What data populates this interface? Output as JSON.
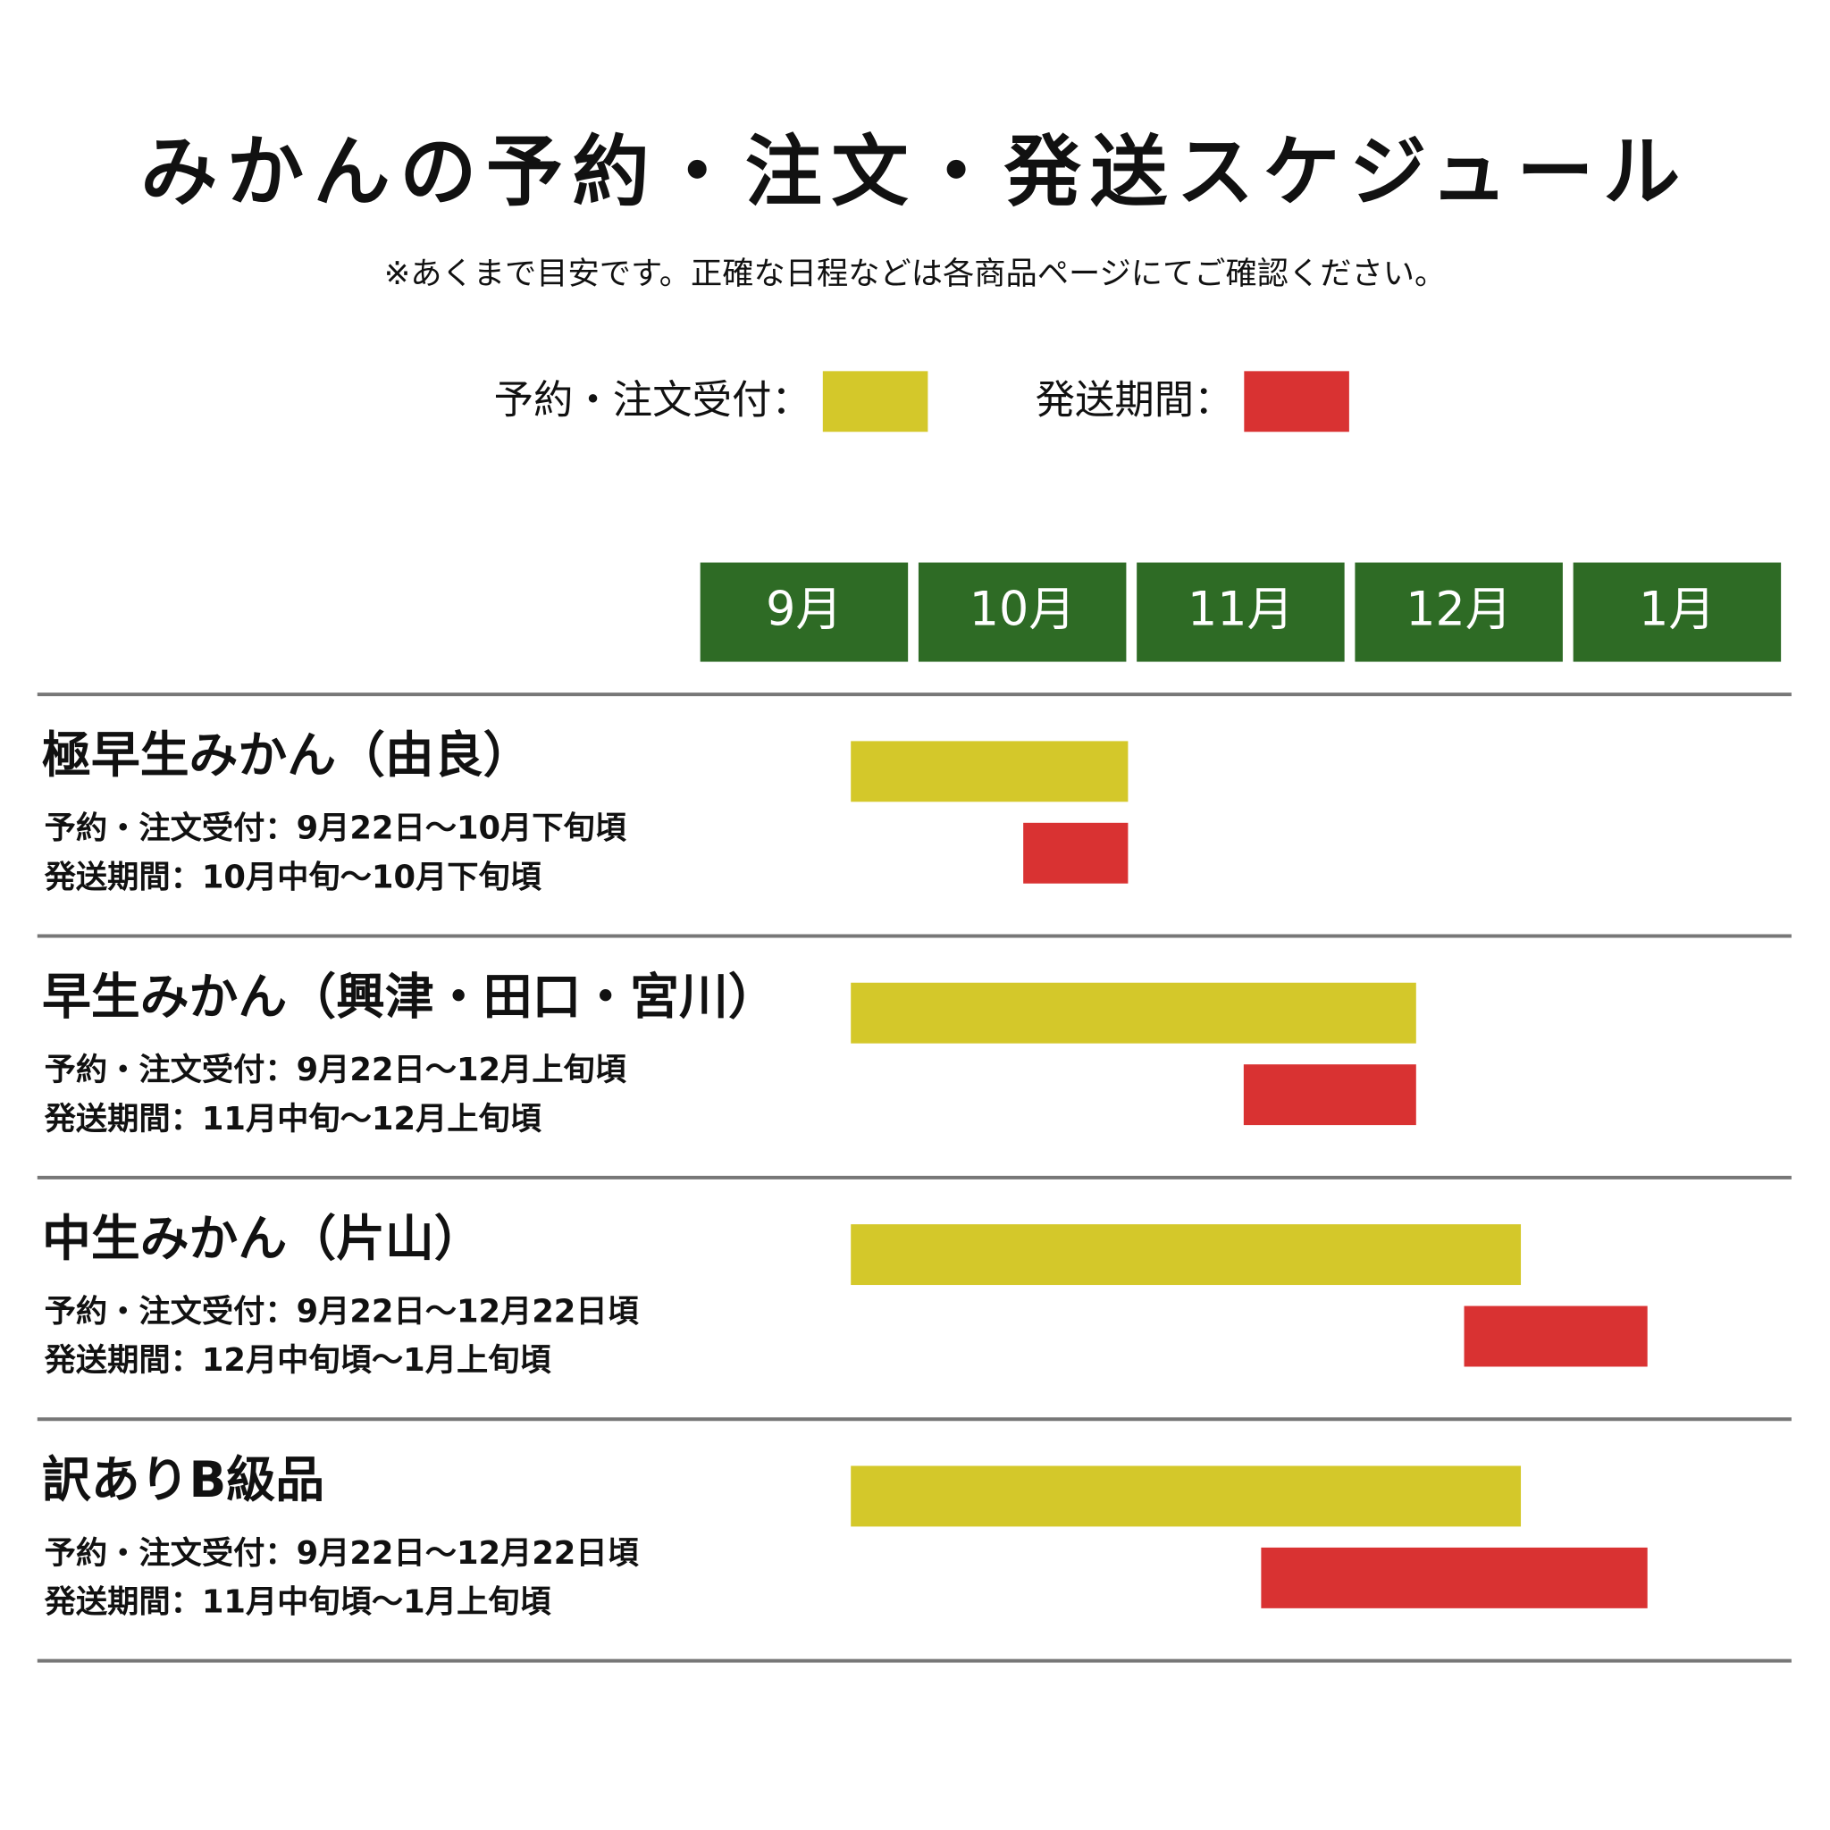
{
  "chart_data": {
    "type": "gantt",
    "title": "みかんの予約・注文・発送スケジュール",
    "subtitle": "※あくまで目安です。正確な日程などは各商品ページにてご確認ください。",
    "months": [
      "9月",
      "10月",
      "11月",
      "12月",
      "1月"
    ],
    "xlim": [
      0,
      5
    ],
    "header_color": "#2e6b25",
    "rows": [
      {
        "label": "極早生みかん（由良）",
        "details": [
          "予約・注文受付：9月22日〜10月下旬頃",
          "発送期間：10月中旬〜10月下旬頃"
        ]
      },
      {
        "label": "早生みかん（興津・田口・宮川）",
        "details": [
          "予約・注文受付：9月22日〜12月上旬頃",
          "発送期間：11月中旬〜12月上旬頃"
        ]
      },
      {
        "label": "中生みかん（片山）",
        "details": [
          "予約・注文受付：9月22日〜12月22日頃",
          "発送期間：12月中旬頃〜1月上旬頃"
        ]
      },
      {
        "label": "訳ありB級品",
        "details": [
          "予約・注文受付：9月22日〜12月22日頃",
          "発送期間：11月中旬頃〜1月上旬頃"
        ]
      }
    ],
    "series": [
      {
        "name": "予約・注文受付：",
        "color": "#d4c82a",
        "starts": [
          0.69,
          0.69,
          0.69,
          0.69
        ],
        "ends": [
          1.96,
          3.28,
          3.76,
          3.76
        ]
      },
      {
        "name": "発送期間：",
        "color": "#d93232",
        "starts": [
          1.48,
          2.49,
          3.5,
          2.57
        ],
        "ends": [
          1.96,
          3.28,
          4.34,
          4.34
        ]
      }
    ]
  }
}
